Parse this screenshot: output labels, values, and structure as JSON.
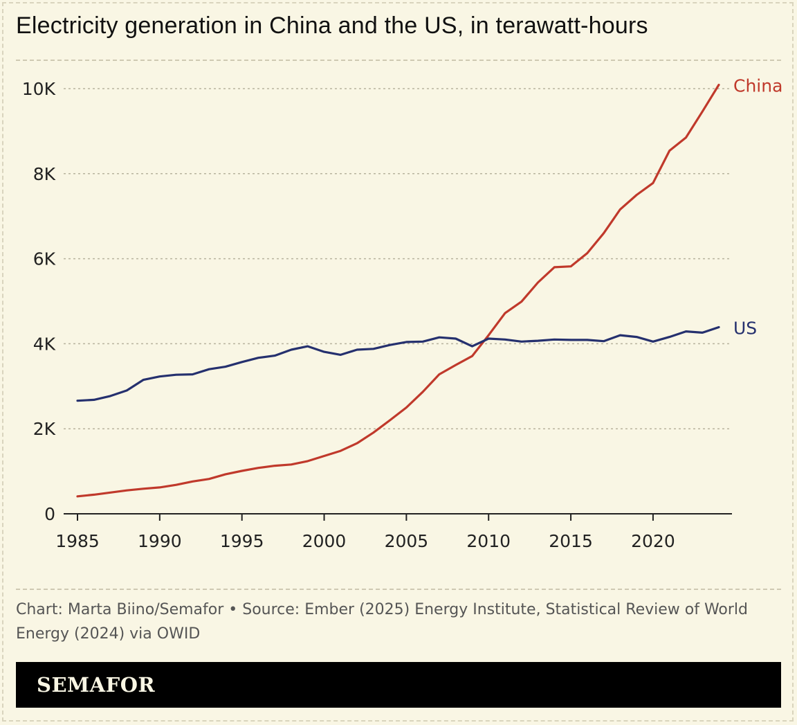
{
  "title": "Electricity generation in China and the US, in terawatt-hours",
  "source": "Chart: Marta Biino/Semafor • Source: Ember (2025) Energy Institute, Statistical Review of World Energy (2024) via OWID",
  "brand": "SEMAFOR",
  "colors": {
    "background": "#f9f6e4",
    "china": "#c0392b",
    "us": "#25306e",
    "grid": "#b8b39d"
  },
  "chart_data": {
    "type": "line",
    "title": "Electricity generation in China and the US, in terawatt-hours",
    "xlabel": "",
    "ylabel": "",
    "xlim": [
      1985,
      2024
    ],
    "ylim": [
      0,
      10000
    ],
    "x_ticks": [
      1985,
      1990,
      1995,
      2000,
      2005,
      2010,
      2015,
      2020
    ],
    "y_ticks": [
      {
        "value": 0,
        "label": "0"
      },
      {
        "value": 2000,
        "label": "2K"
      },
      {
        "value": 4000,
        "label": "4K"
      },
      {
        "value": 6000,
        "label": "6K"
      },
      {
        "value": 8000,
        "label": "8K"
      },
      {
        "value": 10000,
        "label": "10K"
      }
    ],
    "grid": true,
    "x": [
      1985,
      1986,
      1987,
      1988,
      1989,
      1990,
      1991,
      1992,
      1993,
      1994,
      1995,
      1996,
      1997,
      1998,
      1999,
      2000,
      2001,
      2002,
      2003,
      2004,
      2005,
      2006,
      2007,
      2008,
      2009,
      2010,
      2011,
      2012,
      2013,
      2014,
      2015,
      2016,
      2017,
      2018,
      2019,
      2020,
      2021,
      2022,
      2023,
      2024
    ],
    "series": [
      {
        "name": "China",
        "color": "#c0392b",
        "values": [
          410,
          450,
          500,
          550,
          590,
          620,
          680,
          760,
          820,
          930,
          1010,
          1080,
          1130,
          1160,
          1240,
          1360,
          1480,
          1660,
          1910,
          2200,
          2500,
          2870,
          3280,
          3500,
          3710,
          4200,
          4720,
          4990,
          5440,
          5800,
          5820,
          6130,
          6600,
          7160,
          7500,
          7780,
          8540,
          8850,
          9460,
          10090
        ]
      },
      {
        "name": "US",
        "color": "#25306e",
        "values": [
          2660,
          2680,
          2770,
          2900,
          3150,
          3230,
          3270,
          3280,
          3400,
          3460,
          3570,
          3670,
          3720,
          3860,
          3940,
          3810,
          3740,
          3860,
          3880,
          3970,
          4040,
          4050,
          4150,
          4120,
          3940,
          4120,
          4100,
          4050,
          4070,
          4100,
          4090,
          4090,
          4060,
          4200,
          4160,
          4050,
          4160,
          4290,
          4260,
          4390
        ]
      }
    ]
  }
}
